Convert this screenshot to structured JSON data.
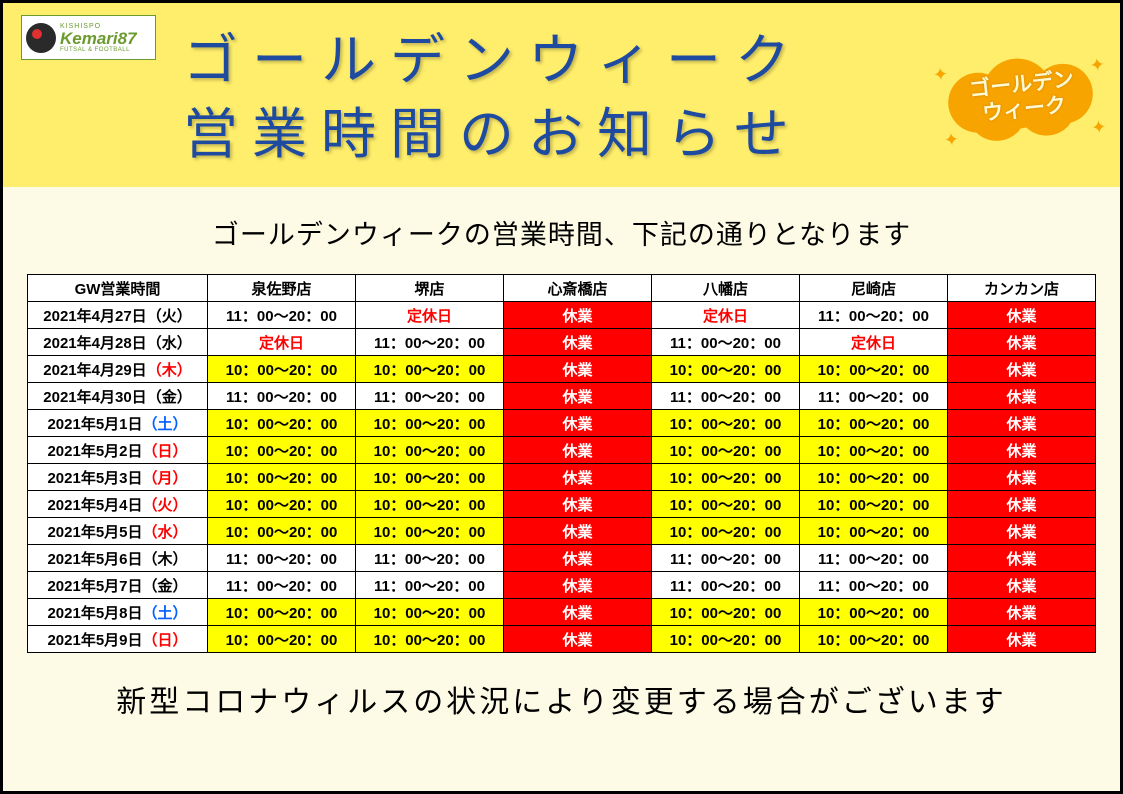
{
  "logo": {
    "topline": "KISHISPO",
    "main": "Kemari87",
    "sub": "FUTSAL & FOOTBALL"
  },
  "header": {
    "title_line1": "ゴールデンウィーク",
    "title_line2": "営業時間のお知らせ",
    "badge_line1": "ゴールデン",
    "badge_line2": "ウィーク"
  },
  "subtitle": "ゴールデンウィークの営業時間、下記の通りとなります",
  "footer_note": "新型コロナウィルスの状況により変更する場合がございます",
  "color_map": {
    "white": "#ffffff",
    "yellow": "#ffff00",
    "red": "#ff0000",
    "header_band": "#ffee6b",
    "page_bg": "#fdfbe6",
    "title_color": "#1e4ba0",
    "badge_color": "#f7a300",
    "dow_red": "#ff0000",
    "dow_blue": "#0060ff"
  },
  "table": {
    "corner_label": "GW営業時間",
    "stores": [
      "泉佐野店",
      "堺店",
      "心斎橋店",
      "八幡店",
      "尼崎店",
      "カンカン店"
    ],
    "rows": [
      {
        "date": "2021年4月27日",
        "dow": "（火）",
        "dow_color": "black",
        "cells": [
          {
            "text": "11：00～20：00",
            "bg": "white"
          },
          {
            "text": "定休日",
            "bg": "white",
            "fg": "red"
          },
          {
            "text": "休業",
            "bg": "red"
          },
          {
            "text": "定休日",
            "bg": "white",
            "fg": "red"
          },
          {
            "text": "11：00～20：00",
            "bg": "white"
          },
          {
            "text": "休業",
            "bg": "red"
          }
        ]
      },
      {
        "date": "2021年4月28日",
        "dow": "（水）",
        "dow_color": "black",
        "cells": [
          {
            "text": "定休日",
            "bg": "white",
            "fg": "red"
          },
          {
            "text": "11：00～20：00",
            "bg": "white"
          },
          {
            "text": "休業",
            "bg": "red"
          },
          {
            "text": "11：00～20：00",
            "bg": "white"
          },
          {
            "text": "定休日",
            "bg": "white",
            "fg": "red"
          },
          {
            "text": "休業",
            "bg": "red"
          }
        ]
      },
      {
        "date": "2021年4月29日",
        "dow": "（木）",
        "dow_color": "red",
        "cells": [
          {
            "text": "10：00～20：00",
            "bg": "yellow"
          },
          {
            "text": "10：00～20：00",
            "bg": "yellow"
          },
          {
            "text": "休業",
            "bg": "red"
          },
          {
            "text": "10：00～20：00",
            "bg": "yellow"
          },
          {
            "text": "10：00～20：00",
            "bg": "yellow"
          },
          {
            "text": "休業",
            "bg": "red"
          }
        ]
      },
      {
        "date": "2021年4月30日",
        "dow": "（金）",
        "dow_color": "black",
        "cells": [
          {
            "text": "11：00～20：00",
            "bg": "white"
          },
          {
            "text": "11：00～20：00",
            "bg": "white"
          },
          {
            "text": "休業",
            "bg": "red"
          },
          {
            "text": "11：00～20：00",
            "bg": "white"
          },
          {
            "text": "11：00～20：00",
            "bg": "white"
          },
          {
            "text": "休業",
            "bg": "red"
          }
        ]
      },
      {
        "date": "2021年5月1日",
        "dow": "（土）",
        "dow_color": "blue",
        "cells": [
          {
            "text": "10：00～20：00",
            "bg": "yellow"
          },
          {
            "text": "10：00～20：00",
            "bg": "yellow"
          },
          {
            "text": "休業",
            "bg": "red"
          },
          {
            "text": "10：00～20：00",
            "bg": "yellow"
          },
          {
            "text": "10：00～20：00",
            "bg": "yellow"
          },
          {
            "text": "休業",
            "bg": "red"
          }
        ]
      },
      {
        "date": "2021年5月2日",
        "dow": "（日）",
        "dow_color": "red",
        "cells": [
          {
            "text": "10：00～20：00",
            "bg": "yellow"
          },
          {
            "text": "10：00～20：00",
            "bg": "yellow"
          },
          {
            "text": "休業",
            "bg": "red"
          },
          {
            "text": "10：00～20：00",
            "bg": "yellow"
          },
          {
            "text": "10：00～20：00",
            "bg": "yellow"
          },
          {
            "text": "休業",
            "bg": "red"
          }
        ]
      },
      {
        "date": "2021年5月3日",
        "dow": "（月）",
        "dow_color": "red",
        "cells": [
          {
            "text": "10：00～20：00",
            "bg": "yellow"
          },
          {
            "text": "10：00～20：00",
            "bg": "yellow"
          },
          {
            "text": "休業",
            "bg": "red"
          },
          {
            "text": "10：00～20：00",
            "bg": "yellow"
          },
          {
            "text": "10：00～20：00",
            "bg": "yellow"
          },
          {
            "text": "休業",
            "bg": "red"
          }
        ]
      },
      {
        "date": "2021年5月4日",
        "dow": "（火）",
        "dow_color": "red",
        "cells": [
          {
            "text": "10：00～20：00",
            "bg": "yellow"
          },
          {
            "text": "10：00～20：00",
            "bg": "yellow"
          },
          {
            "text": "休業",
            "bg": "red"
          },
          {
            "text": "10：00～20：00",
            "bg": "yellow"
          },
          {
            "text": "10：00～20：00",
            "bg": "yellow"
          },
          {
            "text": "休業",
            "bg": "red"
          }
        ]
      },
      {
        "date": "2021年5月5日",
        "dow": "（水）",
        "dow_color": "red",
        "cells": [
          {
            "text": "10：00～20：00",
            "bg": "yellow"
          },
          {
            "text": "10：00～20：00",
            "bg": "yellow"
          },
          {
            "text": "休業",
            "bg": "red"
          },
          {
            "text": "10：00～20：00",
            "bg": "yellow"
          },
          {
            "text": "10：00～20：00",
            "bg": "yellow"
          },
          {
            "text": "休業",
            "bg": "red"
          }
        ]
      },
      {
        "date": "2021年5月6日",
        "dow": "（木）",
        "dow_color": "black",
        "cells": [
          {
            "text": "11：00～20：00",
            "bg": "white"
          },
          {
            "text": "11：00～20：00",
            "bg": "white"
          },
          {
            "text": "休業",
            "bg": "red"
          },
          {
            "text": "11：00～20：00",
            "bg": "white"
          },
          {
            "text": "11：00～20：00",
            "bg": "white"
          },
          {
            "text": "休業",
            "bg": "red"
          }
        ]
      },
      {
        "date": "2021年5月7日",
        "dow": "（金）",
        "dow_color": "black",
        "cells": [
          {
            "text": "11：00～20：00",
            "bg": "white"
          },
          {
            "text": "11：00～20：00",
            "bg": "white"
          },
          {
            "text": "休業",
            "bg": "red"
          },
          {
            "text": "11：00～20：00",
            "bg": "white"
          },
          {
            "text": "11：00～20：00",
            "bg": "white"
          },
          {
            "text": "休業",
            "bg": "red"
          }
        ]
      },
      {
        "date": "2021年5月8日",
        "dow": "（土）",
        "dow_color": "blue",
        "cells": [
          {
            "text": "10：00～20：00",
            "bg": "yellow"
          },
          {
            "text": "10：00～20：00",
            "bg": "yellow"
          },
          {
            "text": "休業",
            "bg": "red"
          },
          {
            "text": "10：00～20：00",
            "bg": "yellow"
          },
          {
            "text": "10：00～20：00",
            "bg": "yellow"
          },
          {
            "text": "休業",
            "bg": "red"
          }
        ]
      },
      {
        "date": "2021年5月9日",
        "dow": "（日）",
        "dow_color": "red",
        "cells": [
          {
            "text": "10：00～20：00",
            "bg": "yellow"
          },
          {
            "text": "10：00～20：00",
            "bg": "yellow"
          },
          {
            "text": "休業",
            "bg": "red"
          },
          {
            "text": "10：00～20：00",
            "bg": "yellow"
          },
          {
            "text": "10：00～20：00",
            "bg": "yellow"
          },
          {
            "text": "休業",
            "bg": "red"
          }
        ]
      }
    ]
  }
}
